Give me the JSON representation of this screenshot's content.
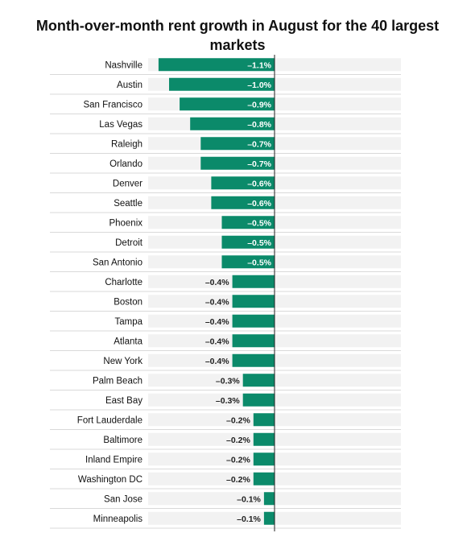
{
  "chart_data": {
    "type": "bar",
    "orientation": "horizontal",
    "title": "Month-over-month rent growth in August for the 40 largest markets",
    "categories": [
      "Nashville",
      "Austin",
      "San Francisco",
      "Las Vegas",
      "Raleigh",
      "Orlando",
      "Denver",
      "Seattle",
      "Phoenix",
      "Detroit",
      "San Antonio",
      "Charlotte",
      "Boston",
      "Tampa",
      "Atlanta",
      "New York",
      "Palm Beach",
      "East Bay",
      "Fort Lauderdale",
      "Baltimore",
      "Inland Empire",
      "Washington DC",
      "San Jose",
      "Minneapolis"
    ],
    "values": [
      -1.1,
      -1.0,
      -0.9,
      -0.8,
      -0.7,
      -0.7,
      -0.6,
      -0.6,
      -0.5,
      -0.5,
      -0.5,
      -0.4,
      -0.4,
      -0.4,
      -0.4,
      -0.4,
      -0.3,
      -0.3,
      -0.2,
      -0.2,
      -0.2,
      -0.2,
      -0.1,
      -0.1
    ],
    "labels": [
      "–1.1%",
      "–1.0%",
      "–0.9%",
      "–0.8%",
      "–0.7%",
      "–0.7%",
      "–0.6%",
      "–0.6%",
      "–0.5%",
      "–0.5%",
      "–0.5%",
      "–0.4%",
      "–0.4%",
      "–0.4%",
      "–0.4%",
      "–0.4%",
      "–0.3%",
      "–0.3%",
      "–0.2%",
      "–0.2%",
      "–0.2%",
      "–0.2%",
      "–0.1%",
      "–0.1%"
    ],
    "xlim": [
      -1.2,
      1.2
    ],
    "grid": false,
    "legend": "none"
  },
  "colors": {
    "bar": "#0b8a6a",
    "track": "#f2f2f2",
    "zero_line": "#222222",
    "row_separator": "#d9d9d9"
  }
}
